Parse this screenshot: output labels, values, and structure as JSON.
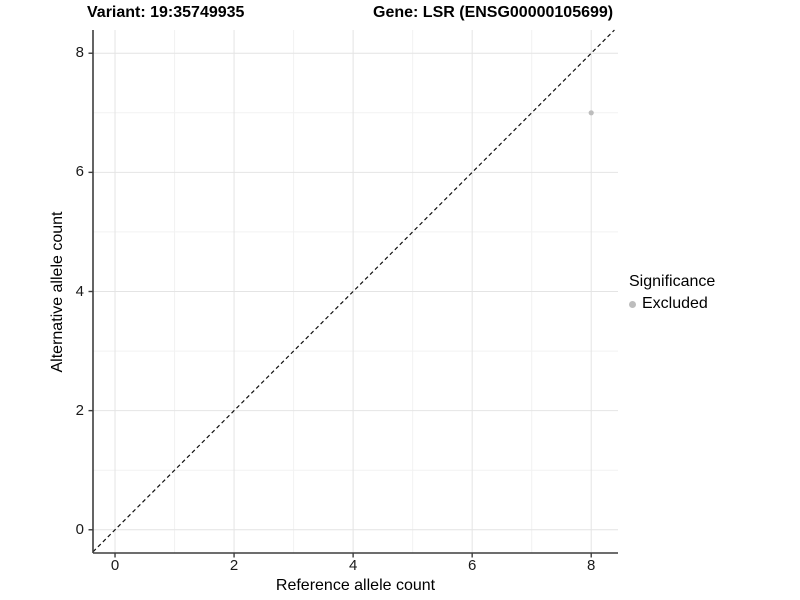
{
  "header": {
    "variant_title": "Variant: 19:35749935",
    "gene_title": "Gene: LSR (ENSG00000105699)"
  },
  "chart_data": {
    "type": "scatter",
    "title_left": "Variant: 19:35749935",
    "title_right": "Gene: LSR (ENSG00000105699)",
    "xlabel": "Reference allele count",
    "ylabel": "Alternative allele count",
    "xlim": [
      -0.37,
      8.45
    ],
    "ylim": [
      -0.39,
      8.39
    ],
    "x_ticks": [
      0,
      2,
      4,
      6,
      8
    ],
    "y_ticks": [
      0,
      2,
      4,
      6,
      8
    ],
    "x_minor_ticks": [
      1,
      3,
      5,
      7
    ],
    "y_minor_ticks": [
      1,
      3,
      5,
      7
    ],
    "grid": "on",
    "points": [
      {
        "x": 8,
        "y": 7,
        "significance": "Excluded"
      }
    ],
    "identity_line": {
      "equation": "y = x",
      "style": "dashed"
    },
    "legend": {
      "title": "Significance",
      "position": "right",
      "items": [
        {
          "label": "Excluded",
          "color": "#bdbdbd"
        }
      ]
    },
    "colors": {
      "point": "#bdbdbd",
      "grid_major": "#e4e4e4",
      "grid_minor": "#f2f2f2",
      "axis_line": "#3d3d3d",
      "dashed_line": "#111111",
      "background": "#ffffff"
    }
  }
}
